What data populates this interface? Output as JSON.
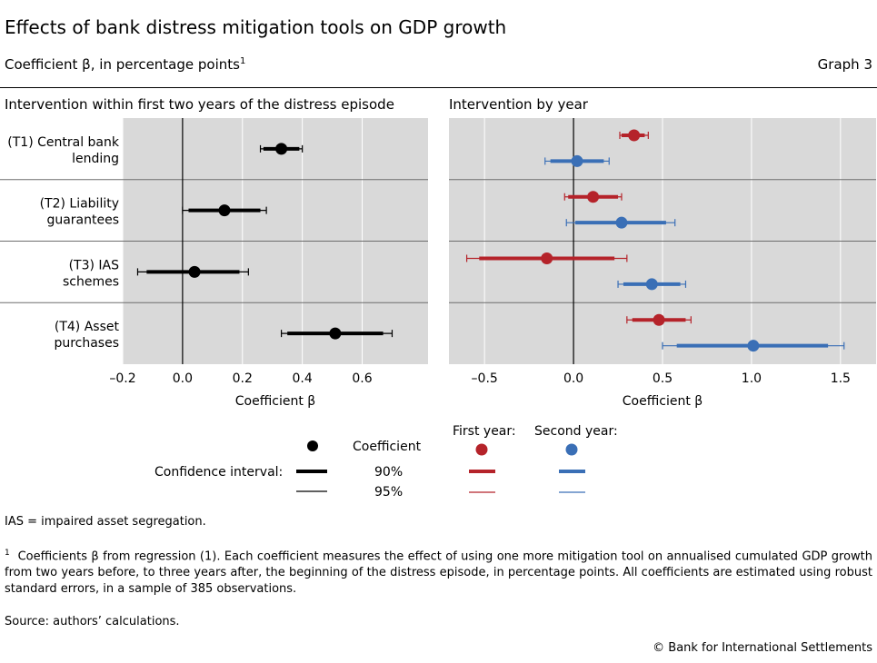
{
  "title": "Effects of bank distress mitigation tools on GDP growth",
  "subtitle": "Coefficient β, in percentage points",
  "subtitle_sup": "1",
  "graph_label": "Graph 3",
  "legend": {
    "coefficient": "Coefficient",
    "confidence_interval": "Confidence interval:",
    "ci90": "90%",
    "ci95": "95%",
    "first_year": "First year:",
    "second_year": "Second year:"
  },
  "notes": {
    "ias": "IAS = impaired asset segregation.",
    "footnote_mark": "1",
    "footnote": "Coefficients β from regression (1). Each coefficient measures the effect of using one more mitigation tool on annualised cumulated GDP growth from two years before, to three years after, the beginning of the distress episode, in percentage points. All coefficients are estimated using robust standard errors, in a sample of 385 observations.",
    "source": "Source: authors’ calculations."
  },
  "copyright": "© Bank for International Settlements",
  "colors": {
    "panel_bg": "#d9d9d9",
    "coefficient": "#000000",
    "first_year": "#b5232a",
    "second_year": "#3a6fb6"
  },
  "chart_data": [
    {
      "type": "scatter",
      "subtype": "coefficient-plot",
      "title": "Intervention within first two years of the distress episode",
      "xlabel": "Coefficient β",
      "xlim": [
        -0.2,
        0.82
      ],
      "xticks": [
        -0.2,
        0.0,
        0.2,
        0.4,
        0.6
      ],
      "xtick_labels": [
        "–0.2",
        "0.0",
        "0.2",
        "0.4",
        "0.6"
      ],
      "categories": [
        "(T1) Central bank lending",
        "(T2) Liability guarantees",
        "(T3) IAS schemes",
        "(T4) Asset purchases"
      ],
      "category_lines": [
        [
          "(T1) Central bank",
          "lending"
        ],
        [
          "(T2) Liability",
          "guarantees"
        ],
        [
          "(T3) IAS",
          "schemes"
        ],
        [
          "(T4) Asset",
          "purchases"
        ]
      ],
      "series": [
        {
          "name": "Coefficient",
          "coef": [
            0.33,
            0.14,
            0.04,
            0.51
          ],
          "ci90": [
            [
              0.27,
              0.39
            ],
            [
              0.02,
              0.26
            ],
            [
              -0.12,
              0.19
            ],
            [
              0.35,
              0.67
            ]
          ],
          "ci95": [
            [
              0.26,
              0.4
            ],
            [
              0.0,
              0.28
            ],
            [
              -0.15,
              0.22
            ],
            [
              0.33,
              0.7
            ]
          ]
        }
      ]
    },
    {
      "type": "scatter",
      "subtype": "coefficient-plot",
      "title": "Intervention by year",
      "xlabel": "Coefficient β",
      "xlim": [
        -0.7,
        1.7
      ],
      "xticks": [
        -0.5,
        0.0,
        0.5,
        1.0,
        1.5
      ],
      "xtick_labels": [
        "–0.5",
        "0.0",
        "0.5",
        "1.0",
        "1.5"
      ],
      "categories": [
        "(T1) Central bank lending",
        "(T2) Liability guarantees",
        "(T3) IAS schemes",
        "(T4) Asset purchases"
      ],
      "series": [
        {
          "name": "First year",
          "coef": [
            0.34,
            0.11,
            -0.15,
            0.48
          ],
          "ci90": [
            [
              0.27,
              0.4
            ],
            [
              -0.03,
              0.25
            ],
            [
              -0.53,
              0.23
            ],
            [
              0.33,
              0.63
            ]
          ],
          "ci95": [
            [
              0.26,
              0.42
            ],
            [
              -0.05,
              0.27
            ],
            [
              -0.6,
              0.3
            ],
            [
              0.3,
              0.66
            ]
          ]
        },
        {
          "name": "Second year",
          "coef": [
            0.02,
            0.27,
            0.44,
            1.01
          ],
          "ci90": [
            [
              -0.13,
              0.17
            ],
            [
              0.01,
              0.52
            ],
            [
              0.28,
              0.6
            ],
            [
              0.58,
              1.43
            ]
          ],
          "ci95": [
            [
              -0.16,
              0.2
            ],
            [
              -0.04,
              0.57
            ],
            [
              0.25,
              0.63
            ],
            [
              0.5,
              1.52
            ]
          ]
        }
      ]
    }
  ]
}
